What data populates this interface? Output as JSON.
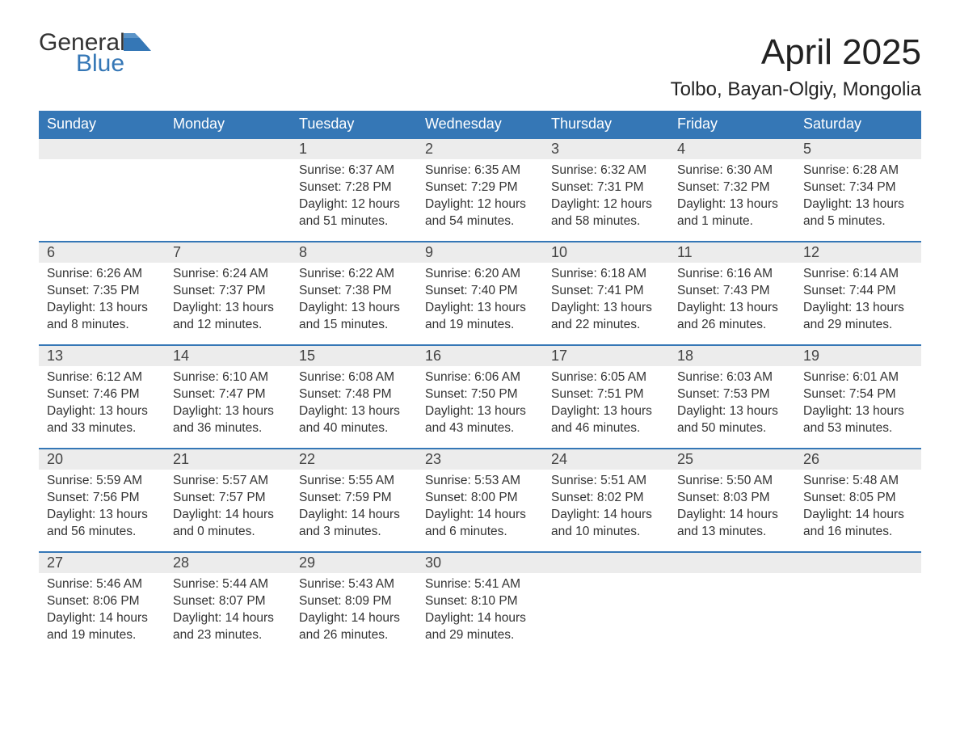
{
  "logo": {
    "word1": "General",
    "word2": "Blue",
    "accent_color": "#3577b6"
  },
  "title": "April 2025",
  "location": "Tolbo, Bayan-Olgiy, Mongolia",
  "colors": {
    "header_bg": "#3577b6",
    "header_text": "#ffffff",
    "daynum_bg": "#ececec",
    "text": "#333333",
    "row_border": "#3577b6"
  },
  "fonts": {
    "title_size": 44,
    "location_size": 24,
    "header_size": 18,
    "body_size": 15.5
  },
  "weekday_labels": [
    "Sunday",
    "Monday",
    "Tuesday",
    "Wednesday",
    "Thursday",
    "Friday",
    "Saturday"
  ],
  "weeks": [
    [
      null,
      null,
      {
        "n": "1",
        "sr": "6:37 AM",
        "ss": "7:28 PM",
        "dh": "12",
        "dm": "51"
      },
      {
        "n": "2",
        "sr": "6:35 AM",
        "ss": "7:29 PM",
        "dh": "12",
        "dm": "54"
      },
      {
        "n": "3",
        "sr": "6:32 AM",
        "ss": "7:31 PM",
        "dh": "12",
        "dm": "58"
      },
      {
        "n": "4",
        "sr": "6:30 AM",
        "ss": "7:32 PM",
        "dh": "13",
        "dm": "1"
      },
      {
        "n": "5",
        "sr": "6:28 AM",
        "ss": "7:34 PM",
        "dh": "13",
        "dm": "5"
      }
    ],
    [
      {
        "n": "6",
        "sr": "6:26 AM",
        "ss": "7:35 PM",
        "dh": "13",
        "dm": "8"
      },
      {
        "n": "7",
        "sr": "6:24 AM",
        "ss": "7:37 PM",
        "dh": "13",
        "dm": "12"
      },
      {
        "n": "8",
        "sr": "6:22 AM",
        "ss": "7:38 PM",
        "dh": "13",
        "dm": "15"
      },
      {
        "n": "9",
        "sr": "6:20 AM",
        "ss": "7:40 PM",
        "dh": "13",
        "dm": "19"
      },
      {
        "n": "10",
        "sr": "6:18 AM",
        "ss": "7:41 PM",
        "dh": "13",
        "dm": "22"
      },
      {
        "n": "11",
        "sr": "6:16 AM",
        "ss": "7:43 PM",
        "dh": "13",
        "dm": "26"
      },
      {
        "n": "12",
        "sr": "6:14 AM",
        "ss": "7:44 PM",
        "dh": "13",
        "dm": "29"
      }
    ],
    [
      {
        "n": "13",
        "sr": "6:12 AM",
        "ss": "7:46 PM",
        "dh": "13",
        "dm": "33"
      },
      {
        "n": "14",
        "sr": "6:10 AM",
        "ss": "7:47 PM",
        "dh": "13",
        "dm": "36"
      },
      {
        "n": "15",
        "sr": "6:08 AM",
        "ss": "7:48 PM",
        "dh": "13",
        "dm": "40"
      },
      {
        "n": "16",
        "sr": "6:06 AM",
        "ss": "7:50 PM",
        "dh": "13",
        "dm": "43"
      },
      {
        "n": "17",
        "sr": "6:05 AM",
        "ss": "7:51 PM",
        "dh": "13",
        "dm": "46"
      },
      {
        "n": "18",
        "sr": "6:03 AM",
        "ss": "7:53 PM",
        "dh": "13",
        "dm": "50"
      },
      {
        "n": "19",
        "sr": "6:01 AM",
        "ss": "7:54 PM",
        "dh": "13",
        "dm": "53"
      }
    ],
    [
      {
        "n": "20",
        "sr": "5:59 AM",
        "ss": "7:56 PM",
        "dh": "13",
        "dm": "56"
      },
      {
        "n": "21",
        "sr": "5:57 AM",
        "ss": "7:57 PM",
        "dh": "14",
        "dm": "0"
      },
      {
        "n": "22",
        "sr": "5:55 AM",
        "ss": "7:59 PM",
        "dh": "14",
        "dm": "3"
      },
      {
        "n": "23",
        "sr": "5:53 AM",
        "ss": "8:00 PM",
        "dh": "14",
        "dm": "6"
      },
      {
        "n": "24",
        "sr": "5:51 AM",
        "ss": "8:02 PM",
        "dh": "14",
        "dm": "10"
      },
      {
        "n": "25",
        "sr": "5:50 AM",
        "ss": "8:03 PM",
        "dh": "14",
        "dm": "13"
      },
      {
        "n": "26",
        "sr": "5:48 AM",
        "ss": "8:05 PM",
        "dh": "14",
        "dm": "16"
      }
    ],
    [
      {
        "n": "27",
        "sr": "5:46 AM",
        "ss": "8:06 PM",
        "dh": "14",
        "dm": "19"
      },
      {
        "n": "28",
        "sr": "5:44 AM",
        "ss": "8:07 PM",
        "dh": "14",
        "dm": "23"
      },
      {
        "n": "29",
        "sr": "5:43 AM",
        "ss": "8:09 PM",
        "dh": "14",
        "dm": "26"
      },
      {
        "n": "30",
        "sr": "5:41 AM",
        "ss": "8:10 PM",
        "dh": "14",
        "dm": "29"
      },
      null,
      null,
      null
    ]
  ],
  "labels": {
    "sunrise": "Sunrise: ",
    "sunset": "Sunset: ",
    "daylight1": "Daylight: ",
    "hours": " hours",
    "and": "and ",
    "minutes_one": " minute.",
    "minutes": " minutes."
  }
}
